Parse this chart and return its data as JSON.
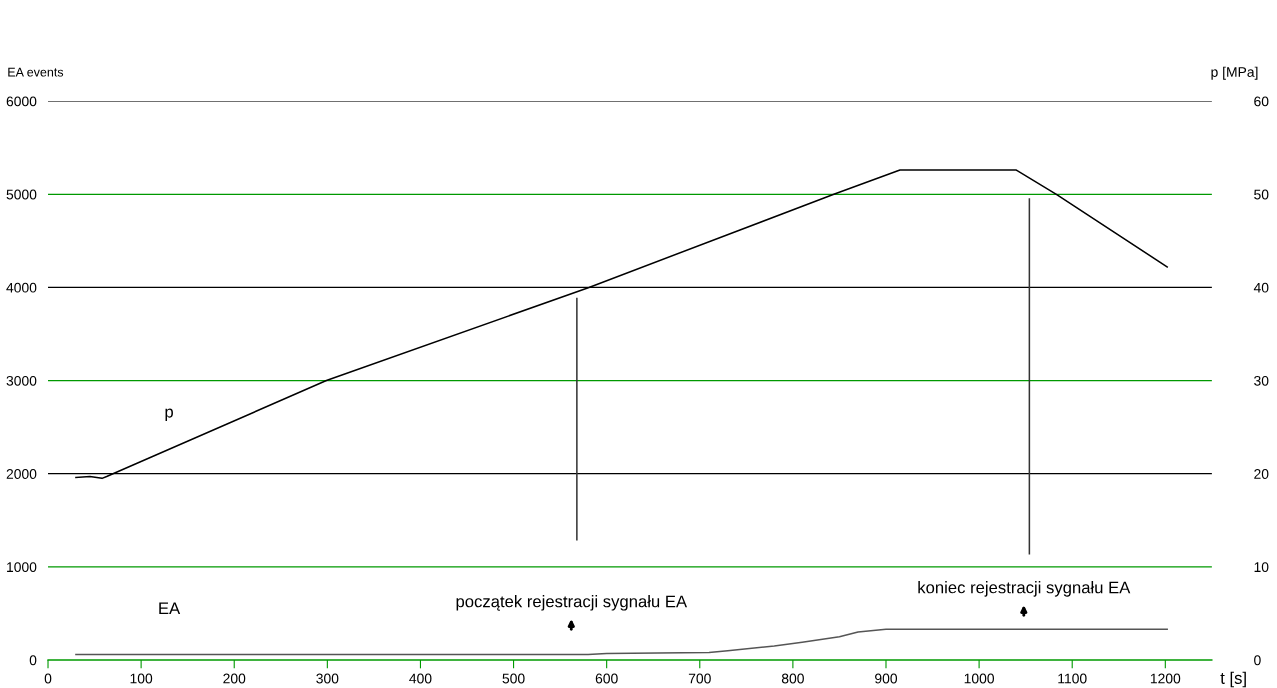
{
  "chart_data": {
    "type": "line",
    "ylabel": "EA events",
    "y2label": "p [MPa]",
    "xlabel": "t [s]",
    "xlim": [
      0,
      1250
    ],
    "xticks": [
      0,
      100,
      200,
      300,
      400,
      500,
      600,
      700,
      800,
      900,
      1000,
      1100,
      1200
    ],
    "ylim": [
      0,
      6000
    ],
    "yticks": [
      0,
      1000,
      2000,
      3000,
      4000,
      5000,
      6000
    ],
    "y2lim": [
      0,
      60
    ],
    "y2ticks": [
      0,
      10,
      20,
      30,
      40,
      50,
      60
    ],
    "grid": "y",
    "legend": false,
    "series": [
      {
        "name": "p",
        "axis": "y2",
        "color": "#000000",
        "x": [
          30,
          45,
          58,
          63,
          299,
          581,
          844,
          915,
          1040,
          1083,
          1202
        ],
        "values": [
          19.6,
          19.7,
          19.5,
          19.7,
          30,
          40,
          50,
          52.6,
          52.6,
          50,
          42.2
        ]
      },
      {
        "name": "EA",
        "color": "#555555",
        "x": [
          30,
          580,
          600,
          710,
          730,
          780,
          810,
          850,
          870,
          900,
          1202
        ],
        "values": [
          60,
          60,
          70,
          80,
          100,
          150,
          190,
          250,
          300,
          330,
          330
        ]
      },
      {
        "color": "#333333",
        "x": [
          568,
          568
        ],
        "values": [
          1290,
          3880
        ]
      },
      {
        "color": "#333333",
        "x": [
          1054,
          1054
        ],
        "values": [
          1140,
          4950
        ]
      }
    ],
    "annotations": [
      "początek rejestracji sygnału EA",
      "koniec rejestracji sygnału EA"
    ]
  }
}
